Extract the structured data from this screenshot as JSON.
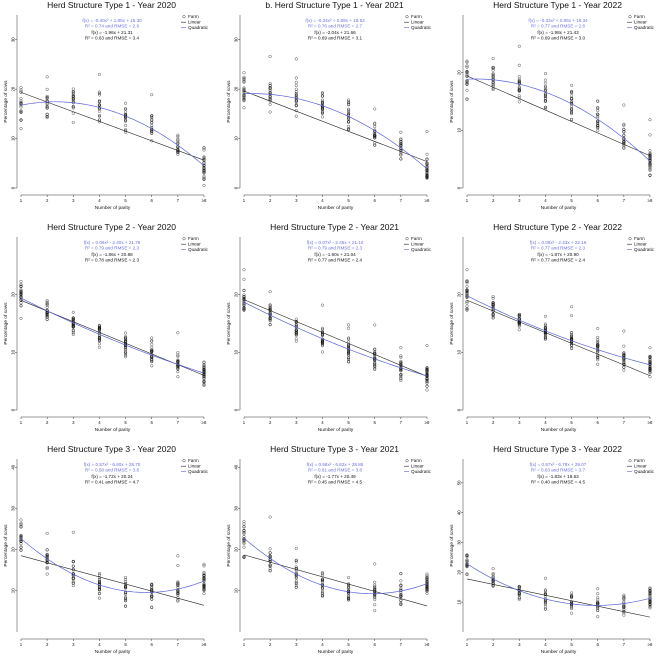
{
  "colors": {
    "linear": "#222222",
    "quadratic": "#5a63d8",
    "points": "#111111",
    "quad_text": "#6a72e0"
  },
  "chart_data": [
    {
      "type": "scatter",
      "title": "Herd Structure Type 1 - Year 2020",
      "xlabel": "Number of parity",
      "ylabel": "Percentage of sows",
      "categories": [
        "1",
        "2",
        "3",
        "4",
        "5",
        "6",
        "7",
        "≥8"
      ],
      "ylim": [
        0,
        35
      ],
      "yticks": [
        0,
        10,
        20,
        30
      ],
      "legend": [
        "Farm",
        "Linear",
        "Quadratic"
      ],
      "quad_eq": "f(x) = -0.40x² + 1.85x + 15.30",
      "quad_r2": "R² = 0.74 and RMSE = 2.9",
      "lin_eq": "f(x) = -1.96x + 21.31",
      "lin_r2": "R² = 0.63 and RMSE = 3.4",
      "linear": {
        "slope": -1.96,
        "intercept": 21.31
      },
      "quadratic": {
        "a": -0.4,
        "b": 1.85,
        "c": 15.3
      },
      "spread": 4.5,
      "n": 20
    },
    {
      "type": "scatter",
      "title": "b. Herd Structure Type 1 - Year 2021",
      "xlabel": "Number of parity",
      "ylabel": "Percentage of sows",
      "categories": [
        "1",
        "2",
        "3",
        "4",
        "5",
        "6",
        "7",
        "≥8"
      ],
      "ylim": [
        0,
        35
      ],
      "yticks": [
        0,
        10,
        20,
        30
      ],
      "legend": [
        "Farm",
        "Linear",
        "Quadratic"
      ],
      "quad_eq": "f(x) = -0.34x² + 0.89x + 18.52",
      "quad_r2": "R² = 0.76 and RMSE = 2.7",
      "lin_eq": "f(x) = -2.04x + 21.66",
      "lin_r2": "R² = 0.69 and RMSE = 3.1",
      "linear": {
        "slope": -2.04,
        "intercept": 21.66
      },
      "quadratic": {
        "a": -0.34,
        "b": 0.89,
        "c": 18.52
      },
      "spread": 4.0,
      "n": 22
    },
    {
      "type": "scatter",
      "title": "Herd Structure Type 1 - Year 2022",
      "xlabel": "Number of parity",
      "ylabel": "Percentage of sows",
      "categories": [
        "1",
        "2",
        "3",
        "4",
        "5",
        "6",
        "7",
        "≥8"
      ],
      "ylim": [
        0,
        30
      ],
      "yticks": [
        0,
        10,
        20
      ],
      "legend": [
        "Farm",
        "Linear",
        "Quadratic"
      ],
      "quad_eq": "f(x) = -0.32x² + 0.85x + 18.34",
      "quad_r2": "R² = 0.77 and RMSE = 2.6",
      "lin_eq": "f(x) = -1.98x + 21.43",
      "lin_r2": "R² = 0.69 and RMSE = 3.0",
      "linear": {
        "slope": -1.98,
        "intercept": 21.43
      },
      "quadratic": {
        "a": -0.32,
        "b": 0.85,
        "c": 18.34
      },
      "spread": 3.8,
      "n": 22
    },
    {
      "type": "scatter",
      "title": "Herd Structure Type 2 - Year 2020",
      "xlabel": "Number of parity",
      "ylabel": "Percentage of sows",
      "categories": [
        "1",
        "2",
        "3",
        "4",
        "5",
        "6",
        "7",
        "≥8"
      ],
      "ylim": [
        0,
        30
      ],
      "yticks": [
        0,
        10,
        20
      ],
      "legend": [
        "Farm",
        "Linear",
        "Quadratic"
      ],
      "quad_eq": "f(x) = 0.06x² - 2.40x + 21.76",
      "quad_r2": "R² = 0.79 and RMSE = 2.3",
      "lin_eq": "f(x) = -1.86x + 20.88",
      "lin_r2": "R² = 0.78 and RMSE = 2.3",
      "linear": {
        "slope": -1.86,
        "intercept": 20.88
      },
      "quadratic": {
        "a": 0.06,
        "b": -2.4,
        "c": 21.76
      },
      "spread": 3.0,
      "n": 26
    },
    {
      "type": "scatter",
      "title": "Herd Structure Type 2 - Year 2021",
      "xlabel": "Number of parity",
      "ylabel": "Percentage of sows",
      "categories": [
        "1",
        "2",
        "3",
        "4",
        "5",
        "6",
        "7",
        "≥8"
      ],
      "ylim": [
        0,
        30
      ],
      "yticks": [
        0,
        10,
        20
      ],
      "legend": [
        "Farm",
        "Linear",
        "Quadratic"
      ],
      "quad_eq": "f(x) = 0.07x² - 2.46x + 21.10",
      "quad_r2": "R² = 0.79 and RMSE = 2.3",
      "lin_eq": "f(x) = -1.90x + 21.04",
      "lin_r2": "R² = 0.77 and RMSE = 2.4",
      "linear": {
        "slope": -1.9,
        "intercept": 21.04
      },
      "quadratic": {
        "a": 0.07,
        "b": -2.46,
        "c": 21.1
      },
      "spread": 3.0,
      "n": 26
    },
    {
      "type": "scatter",
      "title": "Herd Structure Type 2 - Year 2022",
      "xlabel": "Number of parity",
      "ylabel": "Percentage of sows",
      "categories": [
        "1",
        "2",
        "3",
        "4",
        "5",
        "6",
        "7",
        "≥8"
      ],
      "ylim": [
        0,
        30
      ],
      "yticks": [
        0,
        10,
        20
      ],
      "legend": [
        "Farm",
        "Linear",
        "Quadratic"
      ],
      "quad_eq": "f(x) = 0.08x² - 2.43x + 22.16",
      "quad_r2": "R² = 0.77 and RMSE = 2.3",
      "lin_eq": "f(x) = -1.87x + 20.90",
      "lin_r2": "R² = 0.77 and RMSE = 2.4",
      "linear": {
        "slope": -1.87,
        "intercept": 20.9
      },
      "quadratic": {
        "a": 0.08,
        "b": -2.43,
        "c": 22.16
      },
      "spread": 3.0,
      "n": 26
    },
    {
      "type": "scatter",
      "title": "Herd Structure Type 3 - Year 2020",
      "xlabel": "Number of parity",
      "ylabel": "Percentage of sows",
      "categories": [
        "1",
        "2",
        "3",
        "4",
        "5",
        "6",
        "7",
        "≥8"
      ],
      "ylim": [
        0,
        42
      ],
      "yticks": [
        10,
        20,
        30,
        40
      ],
      "legend": [
        "Farm",
        "Linear",
        "Quadratic"
      ],
      "quad_eq": "f(x) = 0.57x² - 6.60x + 28.70",
      "quad_r2": "R² = 0.58 and RMSE = 3.8",
      "lin_eq": "f(x) = -1.72x + 20.24",
      "lin_r2": "R² = 0.41 and RMSE = 4.7",
      "linear": {
        "slope": -1.72,
        "intercept": 20.24
      },
      "quadratic": {
        "a": 0.57,
        "b": -6.6,
        "c": 28.7
      },
      "spread": 5.0,
      "n": 22
    },
    {
      "type": "scatter",
      "title": "Herd Structure Type 3 - Year 2021",
      "xlabel": "Number of parity",
      "ylabel": "Percentage of sows",
      "categories": [
        "1",
        "2",
        "3",
        "4",
        "5",
        "6",
        "7",
        "≥8"
      ],
      "ylim": [
        0,
        42
      ],
      "yticks": [
        10,
        20,
        30,
        40
      ],
      "legend": [
        "Farm",
        "Linear",
        "Quadratic"
      ],
      "quad_eq": "f(x) = 0.56x² - 6.62x + 28.86",
      "quad_r2": "R² = 0.61 and RMSE = 3.8",
      "lin_eq": "f(x) = -1.77x + 20.49",
      "lin_r2": "R² = 0.45 and RMSE = 4.5",
      "linear": {
        "slope": -1.77,
        "intercept": 20.49
      },
      "quadratic": {
        "a": 0.56,
        "b": -6.62,
        "c": 28.86
      },
      "spread": 4.8,
      "n": 22
    },
    {
      "type": "scatter",
      "title": "Herd Structure Type 3 - Year 2022",
      "xlabel": "Number of parity",
      "ylabel": "Percentage of sows",
      "categories": [
        "1",
        "2",
        "3",
        "4",
        "5",
        "6",
        "7",
        "≥8"
      ],
      "ylim": [
        0,
        58
      ],
      "yticks": [
        10,
        20,
        30,
        40,
        50
      ],
      "legend": [
        "Farm",
        "Linear",
        "Quadratic"
      ],
      "quad_eq": "f(x) = 0.57x² - 6.78x + 29.07",
      "quad_r2": "R² = 0.63 and RMSE = 3.7",
      "lin_eq": "f(x) = -1.83x + 19.63",
      "lin_r2": "R² = 0.40 and RMSE = 4.5",
      "linear": {
        "slope": -1.83,
        "intercept": 19.63
      },
      "quadratic": {
        "a": 0.57,
        "b": -6.78,
        "c": 29.07
      },
      "spread": 4.5,
      "n": 18
    }
  ]
}
